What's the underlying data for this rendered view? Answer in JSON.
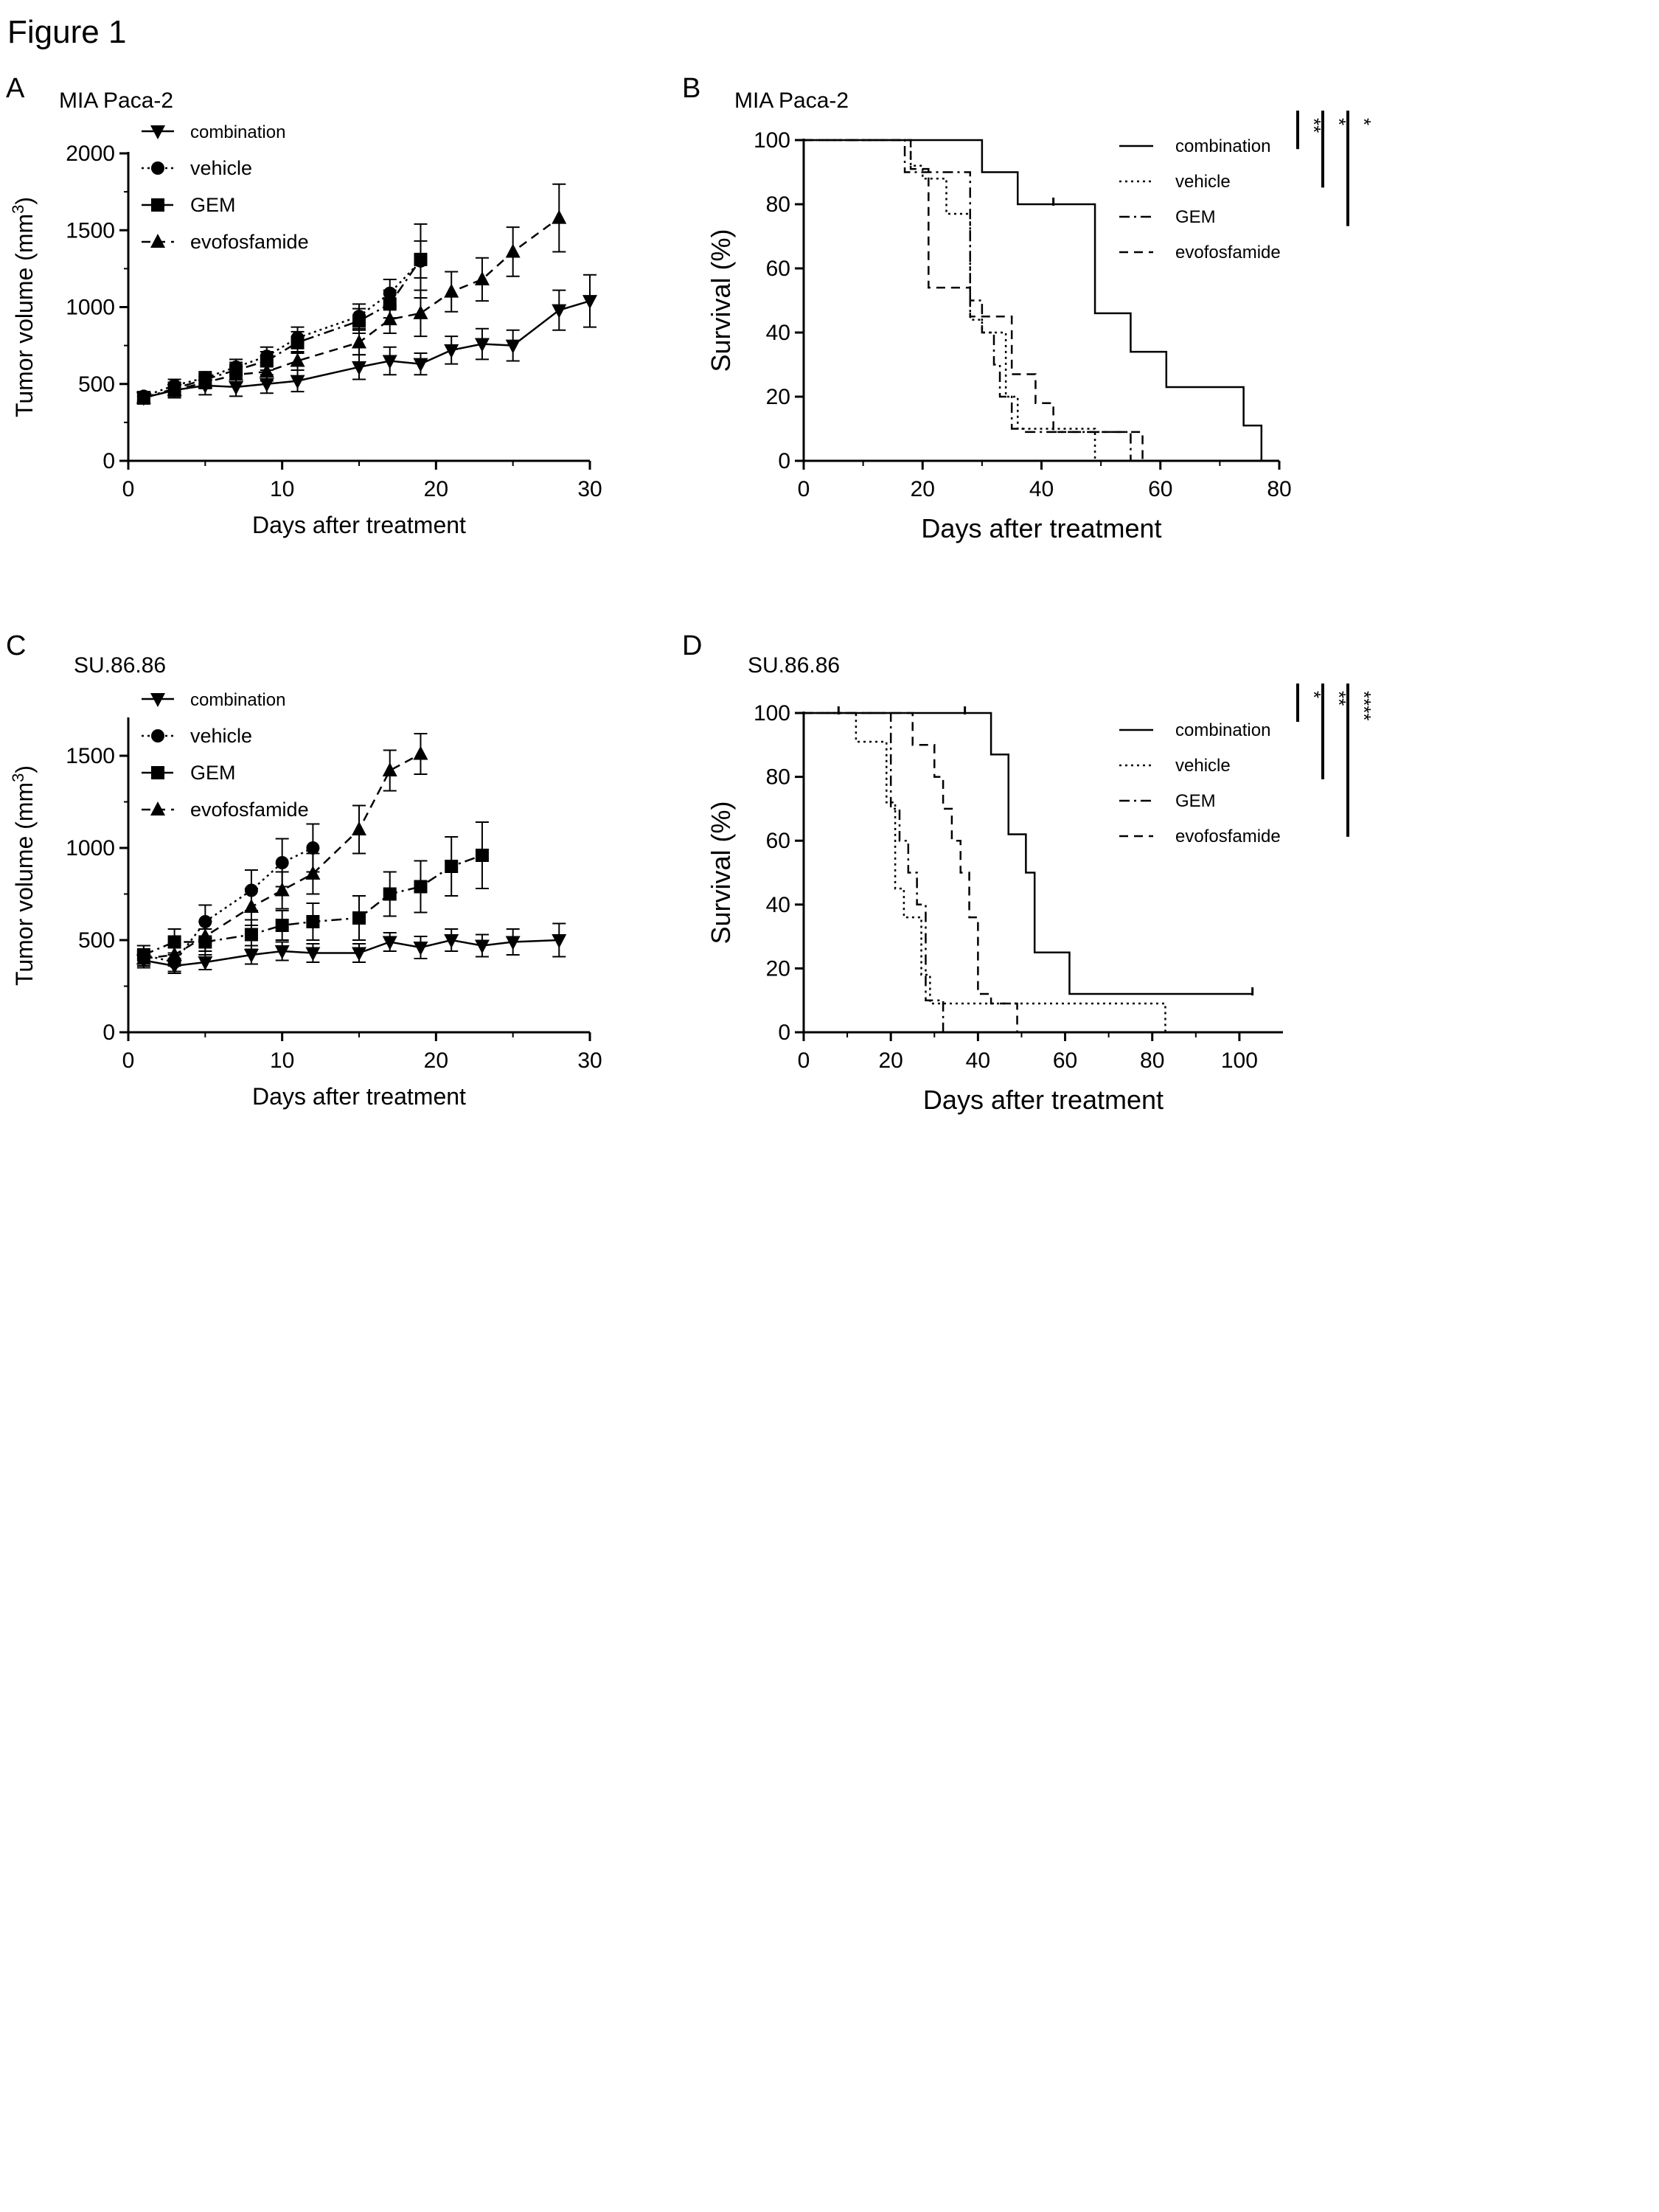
{
  "figure_title": "Figure 1",
  "panels": [
    "A",
    "B",
    "C",
    "D"
  ],
  "chart_data": [
    {
      "id": "A",
      "type": "line",
      "panel_label": "A",
      "title": "MIA Paca-2",
      "xlabel": "Days after treatment",
      "ylabel": "Tumor volume (mm",
      "ylabel_sup": "3",
      "ylabel_end": ")",
      "xlim": [
        0,
        30
      ],
      "ylim": [
        0,
        2000
      ],
      "xticks": [
        0,
        10,
        20,
        30
      ],
      "yticks": [
        0,
        500,
        1000,
        1500,
        2000
      ],
      "series": [
        {
          "name": "combination",
          "marker": "tri-down",
          "dash": "solid",
          "x": [
            1,
            3,
            5,
            7,
            9,
            11,
            15,
            17,
            19,
            21,
            23,
            25,
            28,
            30
          ],
          "y": [
            410,
            460,
            490,
            480,
            500,
            520,
            610,
            650,
            630,
            720,
            760,
            750,
            980,
            1040
          ],
          "err": [
            40,
            50,
            60,
            60,
            60,
            70,
            80,
            90,
            70,
            90,
            100,
            100,
            130,
            170
          ]
        },
        {
          "name": "vehicle",
          "marker": "circle",
          "dash": "dotted",
          "x": [
            1,
            3,
            5,
            7,
            9,
            11,
            15,
            17,
            19
          ],
          "y": [
            420,
            490,
            540,
            610,
            680,
            800,
            940,
            1090,
            1300
          ],
          "err": [
            30,
            40,
            40,
            50,
            60,
            70,
            80,
            90,
            240
          ]
        },
        {
          "name": "GEM",
          "marker": "square",
          "dash": "dashdot",
          "x": [
            1,
            3,
            5,
            7,
            9,
            11,
            15,
            17,
            19
          ],
          "y": [
            410,
            470,
            530,
            590,
            650,
            770,
            910,
            1020,
            1310
          ],
          "err": [
            30,
            40,
            40,
            50,
            60,
            70,
            80,
            90,
            120
          ]
        },
        {
          "name": "evofosfamide",
          "marker": "triangle",
          "dash": "dashed",
          "x": [
            1,
            3,
            5,
            7,
            9,
            11,
            15,
            17,
            19,
            21,
            23,
            25,
            28
          ],
          "y": [
            410,
            460,
            510,
            560,
            580,
            650,
            770,
            920,
            960,
            1100,
            1180,
            1360,
            1580
          ],
          "err": [
            30,
            40,
            40,
            50,
            60,
            60,
            80,
            90,
            150,
            130,
            140,
            160,
            220
          ]
        }
      ]
    },
    {
      "id": "B",
      "type": "line",
      "panel_label": "B",
      "title": "MIA Paca-2",
      "xlabel": "Days after treatment",
      "ylabel": "Survival (%)",
      "xlim": [
        0,
        80
      ],
      "ylim": [
        0,
        100
      ],
      "xticks": [
        0,
        20,
        40,
        60,
        80
      ],
      "yticks": [
        0,
        20,
        40,
        60,
        80,
        100
      ],
      "series": [
        {
          "name": "combination",
          "dash": "solid",
          "x": [
            0,
            30,
            30,
            36,
            36,
            49,
            49,
            55,
            55,
            61,
            61,
            74,
            74,
            77,
            77
          ],
          "y": [
            100,
            100,
            90,
            90,
            80,
            80,
            46,
            46,
            34,
            34,
            23,
            23,
            11,
            11,
            0
          ]
        },
        {
          "name": "vehicle",
          "dash": "dotted",
          "x": [
            0,
            18,
            18,
            20,
            20,
            24,
            24,
            28,
            28,
            30,
            30,
            34,
            34,
            36,
            36,
            49,
            49
          ],
          "y": [
            100,
            100,
            92,
            92,
            88,
            88,
            77,
            77,
            44,
            44,
            40,
            40,
            20,
            20,
            10,
            10,
            0
          ]
        },
        {
          "name": "GEM",
          "dash": "dashdot",
          "x": [
            0,
            17,
            17,
            28,
            28,
            30,
            30,
            32,
            32,
            33,
            33,
            35,
            35,
            37,
            37,
            55,
            55
          ],
          "y": [
            100,
            100,
            90,
            90,
            50,
            50,
            40,
            40,
            30,
            30,
            20,
            20,
            10,
            10,
            9,
            9,
            0
          ]
        },
        {
          "name": "evofosfamide",
          "dash": "dashed",
          "x": [
            0,
            18,
            18,
            21,
            21,
            28,
            28,
            35,
            35,
            39,
            39,
            42,
            42,
            45,
            45,
            57,
            57
          ],
          "y": [
            100,
            100,
            91,
            91,
            54,
            54,
            45,
            45,
            27,
            27,
            18,
            18,
            9,
            9,
            9,
            9,
            0
          ]
        }
      ],
      "censor_marks": [
        {
          "x": 42,
          "y": 80
        }
      ],
      "significance": [
        {
          "label": "**",
          "bar": [
            100,
            88
          ]
        },
        {
          "label": "*",
          "bar": [
            100,
            76
          ]
        },
        {
          "label": "*",
          "bar": [
            100,
            64
          ]
        }
      ]
    },
    {
      "id": "C",
      "type": "line",
      "panel_label": "C",
      "title": "SU.86.86",
      "xlabel": "Days after treatment",
      "ylabel": "Tumor volume (mm",
      "ylabel_sup": "3",
      "ylabel_end": ")",
      "xlim": [
        0,
        30
      ],
      "ylim": [
        0,
        1700
      ],
      "xticks": [
        0,
        10,
        20,
        30
      ],
      "yticks": [
        0,
        500,
        1000,
        1500
      ],
      "series": [
        {
          "name": "combination",
          "marker": "tri-down",
          "dash": "solid",
          "x": [
            1,
            3,
            5,
            8,
            10,
            12,
            15,
            17,
            19,
            21,
            23,
            25,
            28
          ],
          "y": [
            390,
            360,
            380,
            420,
            440,
            430,
            430,
            490,
            460,
            500,
            470,
            490,
            500
          ],
          "err": [
            40,
            40,
            40,
            50,
            50,
            50,
            50,
            50,
            60,
            60,
            60,
            70,
            90
          ]
        },
        {
          "name": "vehicle",
          "marker": "circle",
          "dash": "dotted",
          "x": [
            1,
            3,
            5,
            8,
            10,
            12
          ],
          "y": [
            420,
            380,
            600,
            770,
            920,
            1000
          ],
          "err": [
            50,
            50,
            90,
            110,
            130,
            130
          ]
        },
        {
          "name": "GEM",
          "marker": "square",
          "dash": "dashdot",
          "x": [
            1,
            3,
            5,
            8,
            10,
            12,
            15,
            17,
            19,
            21,
            23
          ],
          "y": [
            420,
            490,
            490,
            530,
            580,
            600,
            620,
            750,
            790,
            900,
            960
          ],
          "err": [
            50,
            70,
            70,
            80,
            80,
            100,
            120,
            120,
            140,
            160,
            180
          ]
        },
        {
          "name": "evofosfamide",
          "marker": "triangle",
          "dash": "dashed",
          "x": [
            1,
            3,
            5,
            8,
            10,
            12,
            15,
            17,
            19
          ],
          "y": [
            400,
            420,
            520,
            680,
            770,
            860,
            1100,
            1420,
            1510
          ],
          "err": [
            40,
            60,
            80,
            100,
            100,
            110,
            130,
            110,
            110
          ]
        }
      ]
    },
    {
      "id": "D",
      "type": "line",
      "panel_label": "D",
      "title": "SU.86.86",
      "xlabel": "Days after treatment",
      "ylabel": "Survival (%)",
      "xlim": [
        0,
        110
      ],
      "ylim": [
        0,
        100
      ],
      "xticks": [
        0,
        20,
        40,
        60,
        80,
        100
      ],
      "yticks": [
        0,
        20,
        40,
        60,
        80,
        100
      ],
      "series": [
        {
          "name": "combination",
          "dash": "solid",
          "x": [
            0,
            43,
            43,
            47,
            47,
            51,
            51,
            53,
            53,
            61,
            61,
            103
          ],
          "y": [
            100,
            100,
            87,
            87,
            62,
            62,
            50,
            50,
            25,
            25,
            12,
            12
          ]
        },
        {
          "name": "vehicle",
          "dash": "dotted",
          "x": [
            0,
            12,
            12,
            19,
            19,
            21,
            21,
            23,
            23,
            27,
            27,
            29,
            29,
            83,
            83
          ],
          "y": [
            100,
            100,
            91,
            91,
            72,
            72,
            45,
            45,
            36,
            36,
            18,
            18,
            9,
            9,
            0
          ]
        },
        {
          "name": "GEM",
          "dash": "dashdot",
          "x": [
            0,
            20,
            20,
            22,
            22,
            24,
            24,
            26,
            26,
            28,
            28,
            32,
            32
          ],
          "y": [
            100,
            100,
            70,
            70,
            60,
            60,
            50,
            50,
            40,
            40,
            10,
            10,
            0
          ]
        },
        {
          "name": "evofosfamide",
          "dash": "dashed",
          "x": [
            0,
            25,
            25,
            30,
            30,
            32,
            32,
            34,
            34,
            36,
            36,
            38,
            38,
            40,
            40,
            43,
            43,
            49,
            49
          ],
          "y": [
            100,
            100,
            90,
            90,
            80,
            80,
            70,
            70,
            60,
            60,
            50,
            50,
            36,
            36,
            12,
            12,
            9,
            9,
            0
          ]
        }
      ],
      "censor_marks": [
        {
          "x": 8,
          "y": 100
        },
        {
          "x": 37,
          "y": 100
        },
        {
          "x": 103,
          "y": 12
        }
      ],
      "significance": [
        {
          "label": "*",
          "bar": [
            100,
            88
          ]
        },
        {
          "label": "**",
          "bar": [
            100,
            70
          ]
        },
        {
          "label": "****",
          "bar": [
            100,
            52
          ]
        }
      ]
    }
  ]
}
